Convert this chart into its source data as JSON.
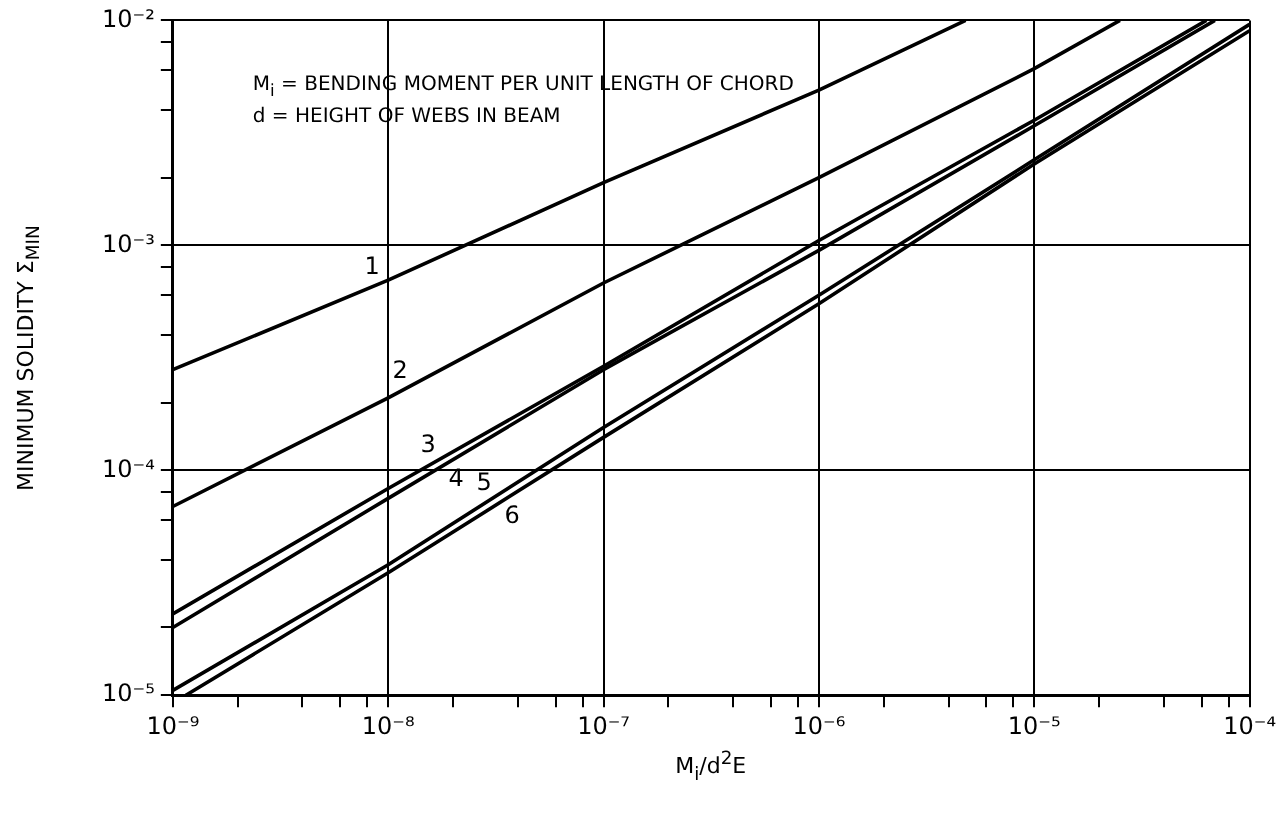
{
  "chart_data": {
    "type": "line",
    "xlabel": "M$_{i}$/d$^{2}$E",
    "ylabel": "MINIMUM SOLIDITY Σ$_{MIN}$",
    "log": "xy",
    "grid": true,
    "legend": false,
    "marker": "none",
    "line_style": "solid",
    "xlim": [
      1e-09,
      0.0001
    ],
    "ylim": [
      1e-05,
      0.01
    ],
    "xticks": [
      {
        "value": 1e-09,
        "label": "10⁻⁹"
      },
      {
        "value": 2e-09,
        "label": null
      },
      {
        "value": 4e-09,
        "label": null
      },
      {
        "value": 6e-09,
        "label": null
      },
      {
        "value": 8e-09,
        "label": null
      },
      {
        "value": 1e-08,
        "label": "10⁻⁸"
      },
      {
        "value": 2e-08,
        "label": null
      },
      {
        "value": 4e-08,
        "label": null
      },
      {
        "value": 6e-08,
        "label": null
      },
      {
        "value": 8e-08,
        "label": null
      },
      {
        "value": 1e-07,
        "label": "10⁻⁷"
      },
      {
        "value": 2e-07,
        "label": null
      },
      {
        "value": 4e-07,
        "label": null
      },
      {
        "value": 6e-07,
        "label": null
      },
      {
        "value": 8e-07,
        "label": null
      },
      {
        "value": 1e-06,
        "label": "10⁻⁶"
      },
      {
        "value": 2e-06,
        "label": null
      },
      {
        "value": 4e-06,
        "label": null
      },
      {
        "value": 6e-06,
        "label": null
      },
      {
        "value": 8e-06,
        "label": null
      },
      {
        "value": 1e-05,
        "label": "10⁻⁵"
      },
      {
        "value": 2e-05,
        "label": null
      },
      {
        "value": 4e-05,
        "label": null
      },
      {
        "value": 6e-05,
        "label": null
      },
      {
        "value": 8e-05,
        "label": null
      },
      {
        "value": 0.0001,
        "label": "10⁻⁴"
      }
    ],
    "yticks": [
      {
        "value": 1e-05,
        "label": "10⁻⁵"
      },
      {
        "value": 2e-05,
        "label": null
      },
      {
        "value": 4e-05,
        "label": null
      },
      {
        "value": 6e-05,
        "label": null
      },
      {
        "value": 8e-05,
        "label": null
      },
      {
        "value": 0.0001,
        "label": "10⁻⁴"
      },
      {
        "value": 0.0002,
        "label": null
      },
      {
        "value": 0.0004,
        "label": null
      },
      {
        "value": 0.0006,
        "label": null
      },
      {
        "value": 0.0008,
        "label": null
      },
      {
        "value": 0.001,
        "label": "10⁻³"
      },
      {
        "value": 0.002,
        "label": null
      },
      {
        "value": 0.004,
        "label": null
      },
      {
        "value": 0.006,
        "label": null
      },
      {
        "value": 0.008,
        "label": null
      },
      {
        "value": 0.01,
        "label": "10⁻²"
      }
    ],
    "series": [
      {
        "name": "1",
        "color": "#000000",
        "x": [
          1e-09,
          1e-08,
          1e-07,
          1e-06,
          4.8e-06
        ],
        "values": [
          0.00028,
          0.0007,
          0.0019,
          0.0049,
          0.01
        ]
      },
      {
        "name": "2",
        "color": "#000000",
        "x": [
          1e-09,
          1e-08,
          1e-07,
          1e-06,
          1e-05,
          2.5e-05
        ],
        "values": [
          6.9e-05,
          0.00021,
          0.00068,
          0.002,
          0.0061,
          0.01
        ]
      },
      {
        "name": "3",
        "color": "#000000",
        "x": [
          1e-09,
          1e-08,
          1e-07,
          1e-06,
          1e-05,
          6.3e-05
        ],
        "values": [
          2.3e-05,
          8.3e-05,
          0.00029,
          0.00105,
          0.0036,
          0.01
        ]
      },
      {
        "name": "4",
        "color": "#000000",
        "x": [
          1e-09,
          1e-08,
          1e-07,
          1e-06,
          1e-05,
          6.9e-05
        ],
        "values": [
          2e-05,
          7.5e-05,
          0.00028,
          0.00095,
          0.0034,
          0.01
        ]
      },
      {
        "name": "5",
        "color": "#000000",
        "x": [
          1e-09,
          1e-08,
          1e-07,
          1e-06,
          1e-05,
          0.0001
        ],
        "values": [
          1.05e-05,
          3.8e-05,
          0.000155,
          0.0006,
          0.0024,
          0.0096
        ]
      },
      {
        "name": "6",
        "color": "#000000",
        "x": [
          1.15e-09,
          1e-08,
          1e-07,
          1e-06,
          1e-05,
          0.0001
        ],
        "values": [
          1e-05,
          3.5e-05,
          0.00014,
          0.00055,
          0.0023,
          0.009
        ]
      }
    ],
    "annotations": [
      "M$_{i}$ = BENDING MOMENT PER UNIT LENGTH OF CHORD",
      "d = HEIGHT OF WEBS IN BEAM"
    ]
  }
}
